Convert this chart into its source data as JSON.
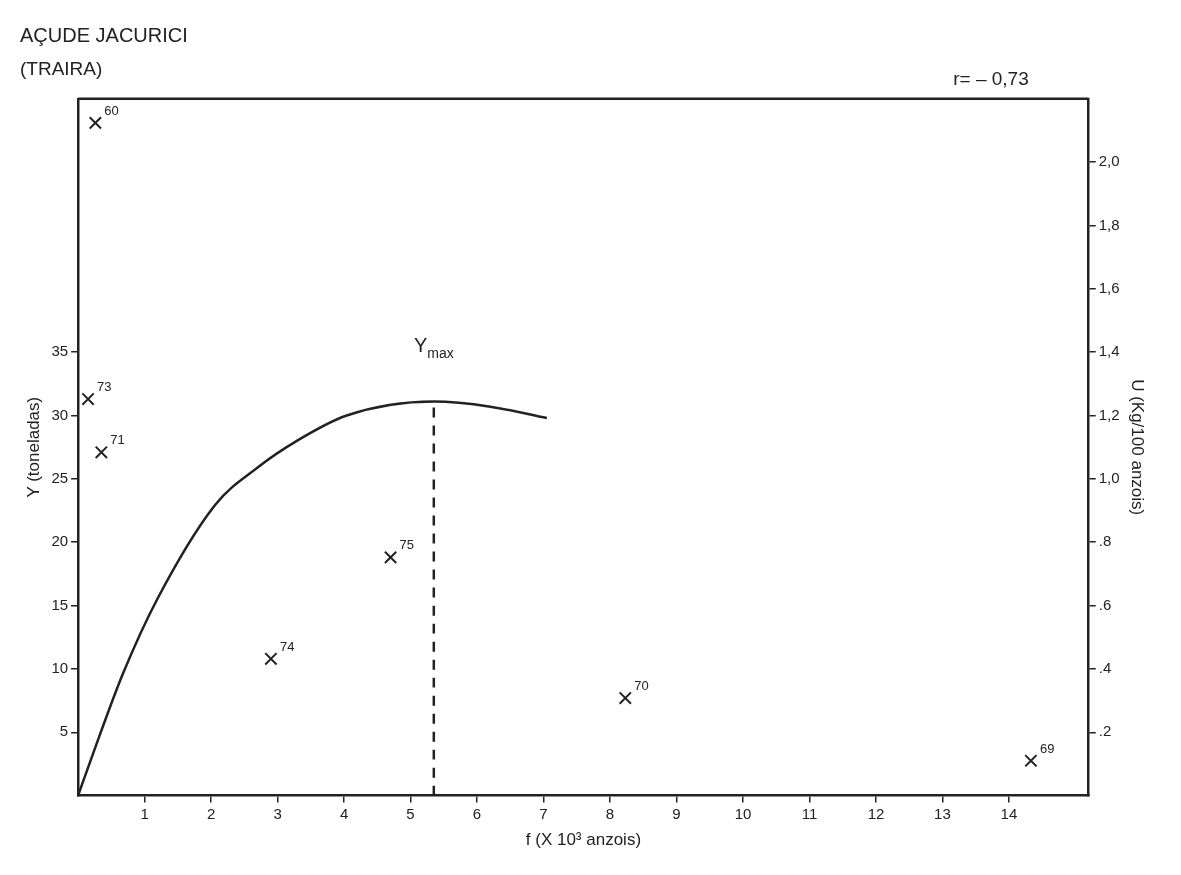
{
  "chart_data": {
    "type": "scatter",
    "title": "AÇUDE JACURICI",
    "subtitle": "(TRAIRA)",
    "xlabel": "f (X 10³ anzois)",
    "ylabel": "Y (toneladas)",
    "y2label": "U (Kg/100 anzois)",
    "annotations": [
      "r= – 0,73",
      {
        "text": "Y$_{max}$",
        "x": 5.35,
        "y": 31.1
      },
      {
        "text": "60",
        "x": 0.26,
        "y": 53.1
      },
      {
        "text": "73",
        "x": 0.15,
        "y": 31.3
      },
      {
        "text": "71",
        "x": 0.35,
        "y": 27.1
      },
      {
        "text": "74",
        "x": 2.9,
        "y": 10.8
      },
      {
        "text": "75",
        "x": 4.7,
        "y": 18.8
      },
      {
        "text": "70",
        "x": 8.23,
        "y": 7.7
      },
      {
        "text": "69",
        "x": 14.33,
        "y": 2.75
      }
    ],
    "xlim": [
      0,
      15.2
    ],
    "xticks": [
      1,
      2,
      3,
      4,
      5,
      6,
      7,
      8,
      9,
      10,
      11,
      12,
      13,
      14
    ],
    "ylim": [
      0,
      55
    ],
    "yticks": [
      5,
      10,
      15,
      20,
      25,
      30,
      35
    ],
    "y2lim": [
      0,
      2.2
    ],
    "y2ticks": [
      {
        "value": 0.2,
        "label": ".2"
      },
      {
        "value": 0.4,
        "label": ".4"
      },
      {
        "value": 0.6,
        "label": ".6"
      },
      {
        "value": 0.8,
        "label": ".8"
      },
      {
        "value": 1.0,
        "label": "1,0"
      },
      {
        "value": 1.2,
        "label": "1,2"
      },
      {
        "value": 1.4,
        "label": "1,4"
      },
      {
        "value": 1.6,
        "label": "1,6"
      },
      {
        "value": 1.8,
        "label": "1,8"
      },
      {
        "value": 2.0,
        "label": "2,0"
      }
    ],
    "grid": false,
    "marker": "cross",
    "series": [
      {
        "type": "scatter",
        "color": "#222222",
        "x": [
          0.26,
          0.15,
          0.35,
          2.9,
          4.7,
          8.23,
          14.33
        ],
        "values": [
          53.1,
          31.3,
          27.1,
          10.8,
          18.8,
          7.7,
          2.75
        ]
      },
      {
        "type": "line",
        "color": "#222222",
        "marker": "none",
        "line_style": "solid",
        "x": [
          0,
          0.32,
          0.68,
          1.2,
          2.07,
          2.7,
          3.29,
          4.04,
          5.35,
          6.2,
          7.05
        ],
        "values": [
          0,
          4.7,
          9.7,
          15.6,
          23,
          25.9,
          28,
          30,
          31.1,
          30.7,
          29.8
        ]
      },
      {
        "type": "line",
        "color": "#222222",
        "marker": "none",
        "line_style": "dashed",
        "x": [
          5.35,
          5.35
        ],
        "values": [
          0,
          31.1
        ]
      }
    ]
  }
}
